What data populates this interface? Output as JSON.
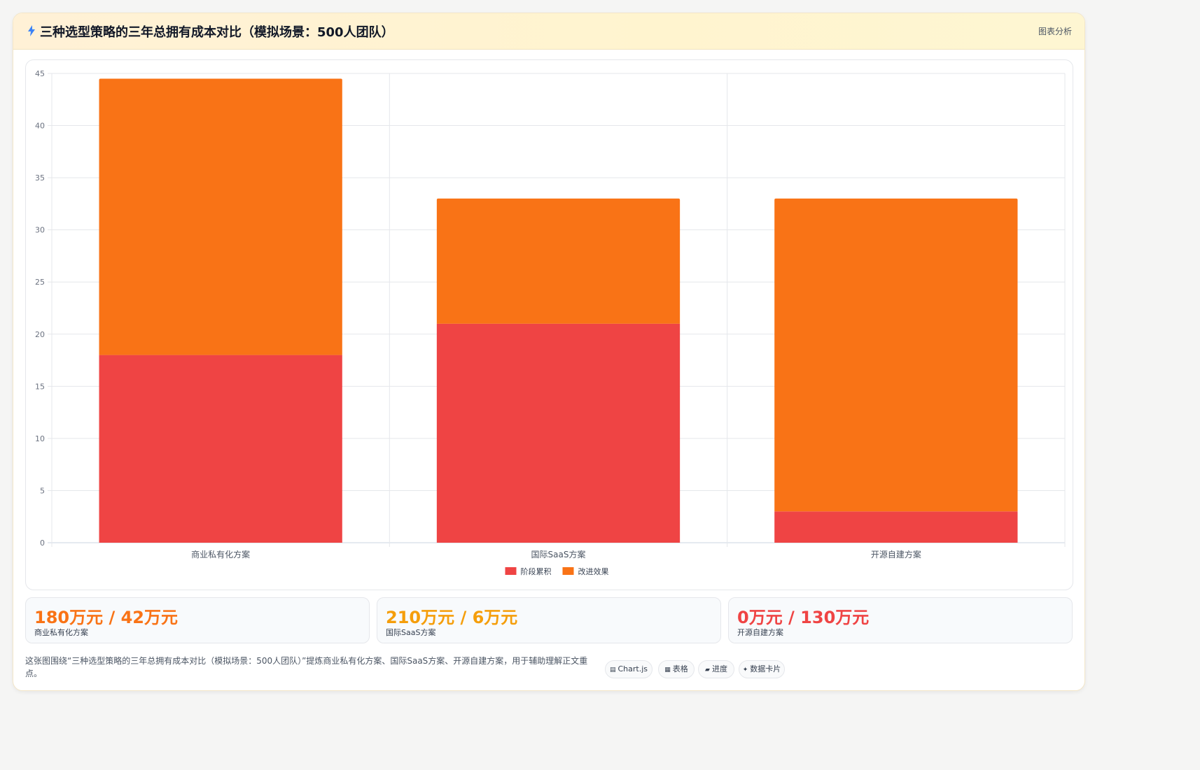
{
  "header": {
    "title": "三种选型策略的三年总拥有成本对比（模拟场景：500人团队）",
    "action_label": "图表分析",
    "icon": "bolt-icon"
  },
  "colors": {
    "series_red": "#ef4444",
    "series_orange": "#f97316",
    "stat_orange": "#f97316",
    "stat_amber": "#f59e0b",
    "stat_red": "#ef4444"
  },
  "chart_data": {
    "type": "bar",
    "stacked": true,
    "categories": [
      "商业私有化方案",
      "国际SaaS方案",
      "开源自建方案"
    ],
    "series": [
      {
        "name": "阶段累积",
        "color": "#ef4444",
        "values": [
          18,
          21,
          3
        ]
      },
      {
        "name": "改进效果",
        "color": "#f97316",
        "values": [
          26.5,
          12,
          30
        ]
      }
    ],
    "ylim": [
      0,
      45
    ],
    "yticks": [
      0,
      5,
      10,
      15,
      20,
      25,
      30,
      35,
      40,
      45
    ],
    "grid": true,
    "legend": "bottom-center",
    "title": "",
    "xlabel": "",
    "ylabel": ""
  },
  "stats": [
    {
      "value": "180万元 / 42万元",
      "label": "商业私有化方案",
      "color": "#f97316"
    },
    {
      "value": "210万元 / 6万元",
      "label": "国际SaaS方案",
      "color": "#f59e0b"
    },
    {
      "value": "0万元 / 130万元",
      "label": "开源自建方案",
      "color": "#ef4444"
    }
  ],
  "footer": {
    "description": "这张图围绕“三种选型策略的三年总拥有成本对比（模拟场景：500人团队）”提炼商业私有化方案、国际SaaS方案、开源自建方案，用于辅助理解正文重点。",
    "chips": [
      {
        "icon": "▤",
        "label": "Chart.js"
      },
      {
        "icon": "▦",
        "label": "表格"
      },
      {
        "icon": "▰",
        "label": "进度"
      },
      {
        "icon": "✦",
        "label": "数据卡片"
      }
    ]
  }
}
